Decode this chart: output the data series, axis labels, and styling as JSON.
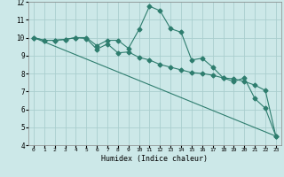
{
  "xlabel": "Humidex (Indice chaleur)",
  "xlim": [
    -0.5,
    23.5
  ],
  "ylim": [
    4,
    12
  ],
  "yticks": [
    4,
    5,
    6,
    7,
    8,
    9,
    10,
    11,
    12
  ],
  "xticks": [
    0,
    1,
    2,
    3,
    4,
    5,
    6,
    7,
    8,
    9,
    10,
    11,
    12,
    13,
    14,
    15,
    16,
    17,
    18,
    19,
    20,
    21,
    22,
    23
  ],
  "bg_color": "#cce8e8",
  "grid_color": "#aacece",
  "line_color": "#2e7d6e",
  "line1_x": [
    0,
    1,
    2,
    3,
    4,
    5,
    6,
    7,
    8,
    9,
    10,
    11,
    12,
    13,
    14,
    15,
    16,
    17,
    18,
    19,
    20,
    21,
    22,
    23
  ],
  "line1_y": [
    10.0,
    9.85,
    9.85,
    9.9,
    10.0,
    10.0,
    9.55,
    9.85,
    9.85,
    9.4,
    10.45,
    11.75,
    11.5,
    10.5,
    10.3,
    8.75,
    8.85,
    8.35,
    7.75,
    7.55,
    7.75,
    6.6,
    6.05,
    4.5
  ],
  "line2_x": [
    0,
    1,
    2,
    3,
    4,
    5,
    6,
    7,
    8,
    9,
    10,
    11,
    12,
    13,
    14,
    15,
    16,
    17,
    18,
    19,
    20,
    21,
    22,
    23
  ],
  "line2_y": [
    10.0,
    9.85,
    9.85,
    9.9,
    10.0,
    9.95,
    9.35,
    9.65,
    9.15,
    9.2,
    8.9,
    8.75,
    8.5,
    8.35,
    8.2,
    8.05,
    8.0,
    7.9,
    7.75,
    7.7,
    7.55,
    7.35,
    7.05,
    4.5
  ],
  "line3_x": [
    0,
    23
  ],
  "line3_y": [
    10.0,
    4.5
  ]
}
